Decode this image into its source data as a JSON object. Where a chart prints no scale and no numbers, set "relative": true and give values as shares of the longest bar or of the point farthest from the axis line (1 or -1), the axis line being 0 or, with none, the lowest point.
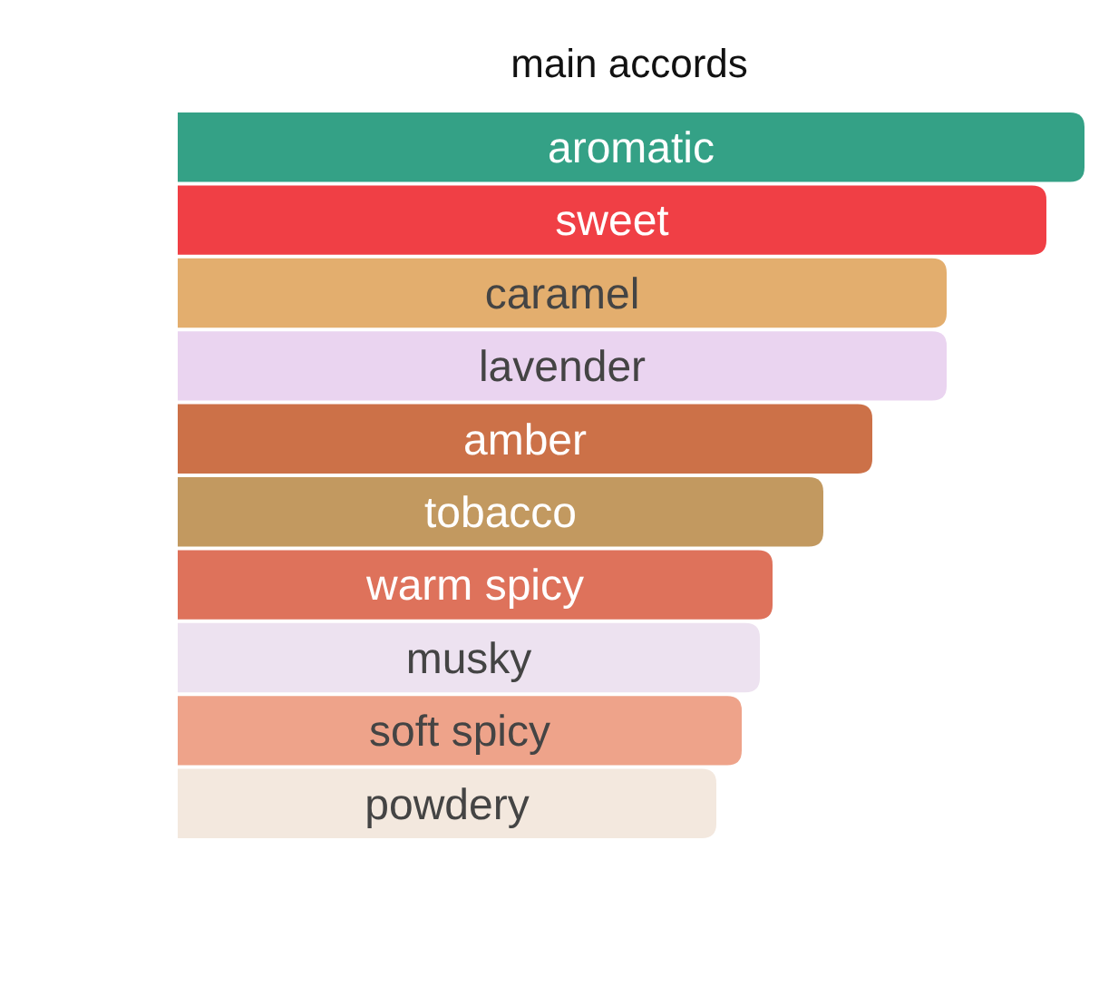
{
  "chart_data": {
    "type": "bar",
    "orientation": "horizontal",
    "relative": true,
    "title": "main accords",
    "categories": [
      "aromatic",
      "sweet",
      "caramel",
      "lavender",
      "amber",
      "tobacco",
      "warm spicy",
      "musky",
      "soft spicy",
      "powdery"
    ],
    "values": [
      1,
      0.958,
      0.848,
      0.848,
      0.766,
      0.712,
      0.656,
      0.642,
      0.622,
      0.594
    ],
    "colors": [
      "#34a186",
      "#f03f45",
      "#e3ae6e",
      "#ead4f0",
      "#cc7148",
      "#c29960",
      "#de725b",
      "#ede2f0",
      "#eea38a",
      "#f3e8de"
    ]
  }
}
